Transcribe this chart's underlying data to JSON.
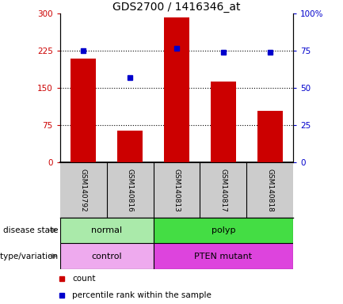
{
  "title": "GDS2700 / 1416346_at",
  "samples": [
    "GSM140792",
    "GSM140816",
    "GSM140813",
    "GSM140817",
    "GSM140818"
  ],
  "bar_values": [
    210,
    65,
    293,
    163,
    105
  ],
  "percentile_values": [
    75,
    57,
    77,
    74,
    74
  ],
  "ylim_left": [
    0,
    300
  ],
  "ylim_right": [
    0,
    100
  ],
  "yticks_left": [
    0,
    75,
    150,
    225,
    300
  ],
  "ytick_labels_left": [
    "0",
    "75",
    "150",
    "225",
    "300"
  ],
  "yticks_right": [
    0,
    25,
    50,
    75,
    100
  ],
  "ytick_labels_right": [
    "0",
    "25",
    "50",
    "75",
    "100%"
  ],
  "hlines": [
    75,
    150,
    225
  ],
  "bar_color": "#cc0000",
  "percentile_color": "#0000cc",
  "disease_state_groups": [
    {
      "label": "normal",
      "color": "#aaeaaa",
      "span": [
        0,
        2
      ]
    },
    {
      "label": "polyp",
      "color": "#44dd44",
      "span": [
        2,
        5
      ]
    }
  ],
  "genotype_groups": [
    {
      "label": "control",
      "color": "#eeaaee",
      "span": [
        0,
        2
      ]
    },
    {
      "label": "PTEN mutant",
      "color": "#dd44dd",
      "span": [
        2,
        5
      ]
    }
  ],
  "legend_items": [
    {
      "color": "#cc0000",
      "label": "count"
    },
    {
      "color": "#0000cc",
      "label": "percentile rank within the sample"
    }
  ],
  "label_disease_state": "disease state",
  "label_genotype": "genotype/variation",
  "sample_bg_color": "#cccccc"
}
